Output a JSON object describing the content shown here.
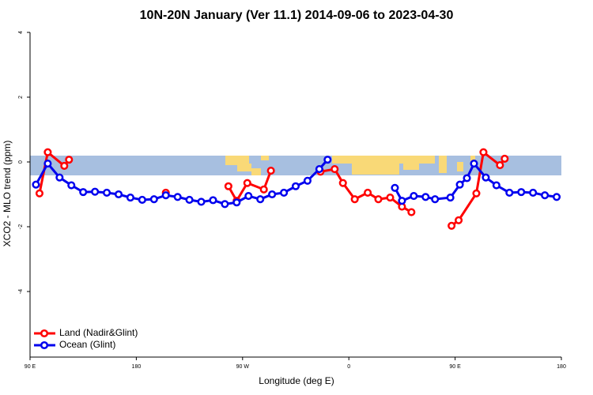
{
  "chart_data": {
    "type": "line",
    "title": "10N-20N January (Ver 11.1)   2014-09-06 to 2023-04-30",
    "x_label": "Longitude (deg E)",
    "y_label": "XCO2 - MLO trend (ppm)",
    "xlim": [
      90,
      540
    ],
    "xticks": [
      {
        "value": 90,
        "label": "90 E"
      },
      180,
      {
        "value": 270,
        "label": "90 W"
      },
      {
        "value": 360,
        "label": "0"
      },
      {
        "value": 450,
        "label": "90 E"
      },
      {
        "value": 540,
        "label": "180"
      }
    ],
    "ylim": [
      -6,
      4
    ],
    "yticks": [
      4,
      2,
      0,
      -2,
      -4
    ],
    "legend": "bottom-left",
    "series": [
      {
        "name": "Land (Nadir&Glint)",
        "color": "#ff0000",
        "x": [
          98,
          105,
          119,
          123,
          160,
          205,
          230,
          258,
          265,
          274,
          288,
          294,
          315,
          336,
          348,
          355,
          365,
          376,
          385,
          395,
          405,
          413,
          430,
          447,
          453,
          468,
          474,
          488,
          492
        ],
        "values": [
          -0.97,
          0.3,
          -0.12,
          0.07,
          null,
          -0.95,
          null,
          -0.75,
          -1.2,
          -0.65,
          -0.85,
          -0.27,
          null,
          -0.3,
          -0.22,
          -0.65,
          -1.15,
          -0.95,
          -1.15,
          -1.1,
          -1.38,
          -1.55,
          null,
          -1.97,
          -1.8,
          -0.97,
          0.3,
          -0.1,
          0.1
        ]
      },
      {
        "name": "Ocean (Glint)",
        "color": "#0000ee",
        "x": [
          95,
          105,
          115,
          125,
          135,
          145,
          155,
          165,
          175,
          185,
          195,
          205,
          215,
          225,
          235,
          245,
          255,
          265,
          275,
          285,
          295,
          305,
          315,
          325,
          335,
          342,
          370,
          399,
          405,
          415,
          425,
          433,
          446,
          454,
          460,
          466,
          476,
          485,
          496,
          506,
          516,
          526,
          536
        ],
        "values": [
          -0.7,
          -0.05,
          -0.48,
          -0.72,
          -0.93,
          -0.92,
          -0.95,
          -1.0,
          -1.1,
          -1.17,
          -1.15,
          -1.03,
          -1.08,
          -1.17,
          -1.23,
          -1.18,
          -1.3,
          -1.25,
          -1.05,
          -1.15,
          -1.0,
          -0.95,
          -0.75,
          -0.58,
          -0.22,
          0.07,
          null,
          -0.8,
          -1.2,
          -1.05,
          -1.08,
          -1.15,
          -1.1,
          -0.7,
          -0.5,
          -0.05,
          -0.48,
          -0.72,
          -0.95,
          -0.93,
          -0.95,
          -1.03,
          -1.08
        ]
      }
    ]
  }
}
